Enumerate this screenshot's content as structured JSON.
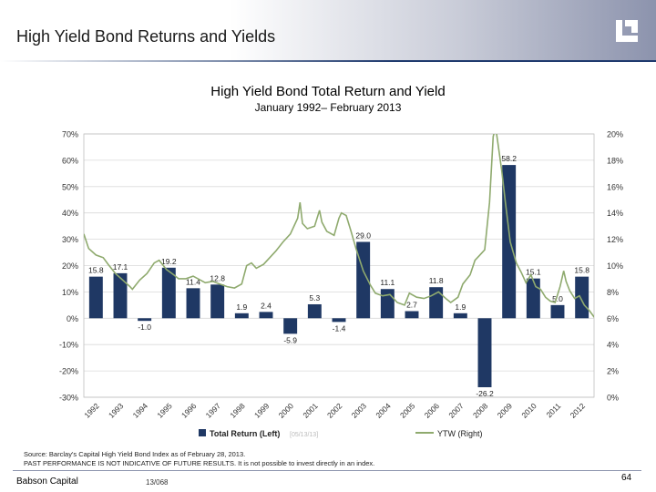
{
  "slide": {
    "title": "High Yield Bond Returns and Yields",
    "company": "Babson Capital",
    "code": "13/068",
    "page": "64",
    "source_lines": [
      "Source: Barclay's Capital High Yield Bond Index as of February 28, 2013.",
      "PAST PERFORMANCE IS NOT INDICATIVE OF FUTURE RESULTS. It is not possible to invest directly in an index."
    ]
  },
  "colors": {
    "bar": "#1f3864",
    "line": "#8faa6e",
    "accent": "#1f3a6e"
  },
  "chart_data": {
    "type": "bar",
    "title": "High Yield Bond Total Return and Yield",
    "subtitle": "January 1992– February 2013",
    "categories": [
      "1992",
      "1993",
      "1994",
      "1995",
      "1996",
      "1997",
      "1998",
      "1999",
      "2000",
      "2001",
      "2002",
      "2003",
      "2004",
      "2005",
      "2006",
      "2007",
      "2008",
      "2009",
      "2010",
      "2011",
      "2012"
    ],
    "series": [
      {
        "name": "Total Return (Left)",
        "axis": "left",
        "type": "bar",
        "values": [
          15.8,
          17.1,
          -1.0,
          19.2,
          11.4,
          12.8,
          1.9,
          2.4,
          -5.9,
          5.3,
          -1.4,
          29.0,
          11.1,
          2.7,
          11.8,
          1.9,
          -26.2,
          58.2,
          15.1,
          5.0,
          15.8
        ],
        "labels": [
          "15.8",
          "17.1",
          "-1.0",
          "19.2",
          "11.4",
          "12.8",
          "1.9",
          "2.4",
          "-5.9",
          "5.3",
          "-1.4",
          "29.0",
          "11.1",
          "2.7",
          "11.8",
          "1.9",
          "-26.2",
          "58.2",
          "15.1",
          "5.0",
          "15.8"
        ]
      },
      {
        "name": "YTW (Right)",
        "axis": "right",
        "type": "line",
        "points": [
          [
            1992.0,
            12.4
          ],
          [
            1992.2,
            11.3
          ],
          [
            1992.5,
            10.8
          ],
          [
            1992.8,
            10.6
          ],
          [
            1993.0,
            10.1
          ],
          [
            1993.3,
            9.4
          ],
          [
            1993.6,
            8.9
          ],
          [
            1993.9,
            8.4
          ],
          [
            1994.0,
            8.2
          ],
          [
            1994.3,
            8.9
          ],
          [
            1994.6,
            9.4
          ],
          [
            1994.9,
            10.2
          ],
          [
            1995.1,
            10.4
          ],
          [
            1995.4,
            9.7
          ],
          [
            1995.7,
            9.3
          ],
          [
            1995.9,
            9.0
          ],
          [
            1996.2,
            9.0
          ],
          [
            1996.5,
            9.2
          ],
          [
            1996.8,
            8.9
          ],
          [
            1997.0,
            8.7
          ],
          [
            1997.3,
            8.8
          ],
          [
            1997.6,
            8.6
          ],
          [
            1997.9,
            8.4
          ],
          [
            1998.2,
            8.3
          ],
          [
            1998.5,
            8.6
          ],
          [
            1998.7,
            10.0
          ],
          [
            1998.9,
            10.2
          ],
          [
            1999.1,
            9.8
          ],
          [
            1999.4,
            10.1
          ],
          [
            1999.7,
            10.7
          ],
          [
            1999.9,
            11.1
          ],
          [
            2000.2,
            11.8
          ],
          [
            2000.5,
            12.4
          ],
          [
            2000.8,
            13.6
          ],
          [
            2000.9,
            14.8
          ],
          [
            2001.0,
            13.2
          ],
          [
            2001.2,
            12.8
          ],
          [
            2001.5,
            13.0
          ],
          [
            2001.7,
            14.2
          ],
          [
            2001.8,
            13.3
          ],
          [
            2002.0,
            12.6
          ],
          [
            2002.3,
            12.3
          ],
          [
            2002.5,
            13.6
          ],
          [
            2002.6,
            14.0
          ],
          [
            2002.8,
            13.8
          ],
          [
            2003.0,
            12.6
          ],
          [
            2003.2,
            11.3
          ],
          [
            2003.5,
            9.6
          ],
          [
            2003.8,
            8.5
          ],
          [
            2004.0,
            7.9
          ],
          [
            2004.3,
            7.7
          ],
          [
            2004.6,
            7.8
          ],
          [
            2004.9,
            7.2
          ],
          [
            2005.2,
            7.0
          ],
          [
            2005.4,
            7.9
          ],
          [
            2005.7,
            7.6
          ],
          [
            2006.0,
            7.5
          ],
          [
            2006.3,
            7.7
          ],
          [
            2006.6,
            8.0
          ],
          [
            2006.9,
            7.5
          ],
          [
            2007.1,
            7.2
          ],
          [
            2007.4,
            7.6
          ],
          [
            2007.6,
            8.6
          ],
          [
            2007.9,
            9.3
          ],
          [
            2008.1,
            10.4
          ],
          [
            2008.3,
            10.8
          ],
          [
            2008.5,
            11.2
          ],
          [
            2008.7,
            14.8
          ],
          [
            2008.85,
            19.8
          ],
          [
            2008.95,
            20.5
          ],
          [
            2009.05,
            19.2
          ],
          [
            2009.2,
            17.2
          ],
          [
            2009.35,
            14.8
          ],
          [
            2009.55,
            11.8
          ],
          [
            2009.8,
            10.2
          ],
          [
            2010.0,
            9.5
          ],
          [
            2010.2,
            8.7
          ],
          [
            2010.4,
            9.3
          ],
          [
            2010.6,
            8.4
          ],
          [
            2010.8,
            8.2
          ],
          [
            2011.0,
            7.6
          ],
          [
            2011.2,
            7.3
          ],
          [
            2011.4,
            7.2
          ],
          [
            2011.6,
            8.4
          ],
          [
            2011.75,
            9.6
          ],
          [
            2011.85,
            8.8
          ],
          [
            2012.0,
            8.1
          ],
          [
            2012.2,
            7.5
          ],
          [
            2012.4,
            7.7
          ],
          [
            2012.6,
            7.0
          ],
          [
            2012.8,
            6.6
          ],
          [
            2013.0,
            6.1
          ],
          [
            2013.15,
            5.9
          ]
        ]
      }
    ],
    "annotation": "[05/13/13]",
    "left_axis": {
      "min": -30,
      "max": 70,
      "step": 10,
      "ticks": [
        "-30%",
        "-20%",
        "-10%",
        "0%",
        "10%",
        "20%",
        "30%",
        "40%",
        "50%",
        "60%",
        "70%"
      ]
    },
    "right_axis": {
      "min": 0,
      "max": 20,
      "step": 2,
      "ticks": [
        "0%",
        "2%",
        "4%",
        "6%",
        "8%",
        "10%",
        "12%",
        "14%",
        "16%",
        "18%",
        "20%"
      ]
    },
    "grid": true,
    "legend_position": "bottom"
  }
}
